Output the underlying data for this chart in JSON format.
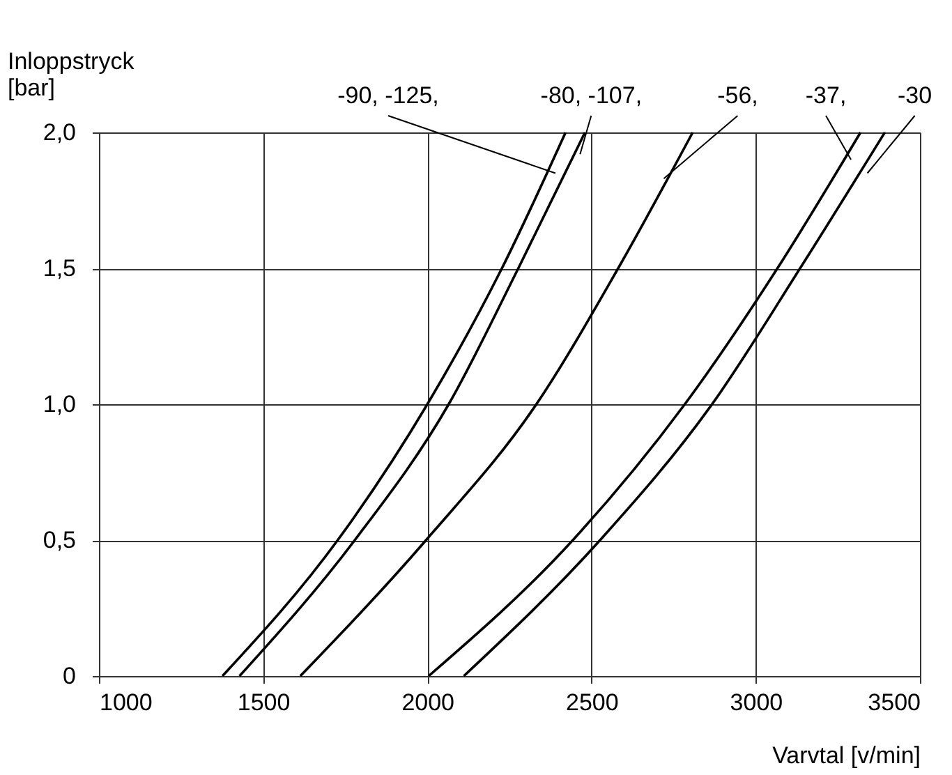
{
  "chart_data": {
    "type": "line",
    "xlabel": "Varvtal [v/min]",
    "ylabel": "Inloppstryck\n[bar]",
    "xlim": [
      1000,
      3500
    ],
    "xticks": [
      1000,
      1500,
      2000,
      2500,
      3000,
      3500
    ],
    "ylim": [
      0,
      2.0
    ],
    "yticks": [
      0,
      {
        "value": 0.5,
        "label": "0,5"
      },
      {
        "value": 1.0,
        "label": "1,0"
      },
      {
        "value": 1.5,
        "label": "1,5"
      },
      {
        "value": 2.0,
        "label": "2,0"
      }
    ],
    "grid": true,
    "marker": "none",
    "line_style": "solid",
    "series": [
      {
        "color": "#000000",
        "x": [
          1376,
          1727,
          2000,
          2227,
          2421
        ],
        "values": [
          0,
          0.5,
          1.0,
          1.5,
          2.0
        ]
      },
      {
        "color": "#000000",
        "x": [
          1428,
          1779,
          2065,
          2277,
          2480
        ],
        "values": [
          0,
          0.5,
          1.0,
          1.5,
          2.0
        ]
      },
      {
        "color": "#000000",
        "x": [
          1613,
          1996,
          2332,
          2581,
          2808
        ],
        "values": [
          0,
          0.5,
          1.0,
          1.5,
          2.0
        ]
      },
      {
        "color": "#000000",
        "x": [
          2004,
          2443,
          2784,
          3066,
          3319
        ],
        "values": [
          0,
          0.5,
          1.0,
          1.5,
          2.0
        ]
      },
      {
        "color": "#000000",
        "x": [
          2111,
          2526,
          2867,
          3135,
          3393
        ],
        "values": [
          0,
          0.5,
          1.0,
          1.5,
          2.0
        ]
      }
    ],
    "annotations": [
      {
        "text": "-90, -125,",
        "x": 2390,
        "y": 1.85
      },
      {
        "text": "-80, -107,",
        "x": 2465,
        "y": 1.92
      },
      {
        "text": "-56,",
        "x": 2720,
        "y": 1.83
      },
      {
        "text": "-37,",
        "x": 3290,
        "y": 1.9
      },
      {
        "text": "-30",
        "x": 3340,
        "y": 1.85
      }
    ]
  }
}
